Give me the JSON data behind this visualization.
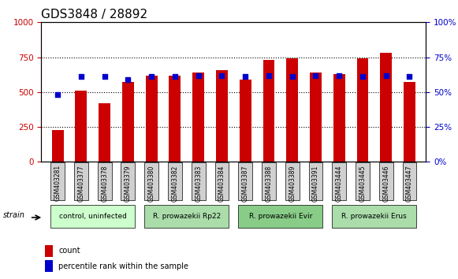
{
  "title": "GDS3848 / 28892",
  "samples": [
    "GSM403281",
    "GSM403377",
    "GSM403378",
    "GSM403379",
    "GSM403380",
    "GSM403382",
    "GSM403383",
    "GSM403384",
    "GSM403387",
    "GSM403388",
    "GSM403389",
    "GSM403391",
    "GSM403444",
    "GSM403445",
    "GSM403446",
    "GSM403447"
  ],
  "counts": [
    230,
    510,
    420,
    575,
    620,
    620,
    640,
    655,
    590,
    730,
    740,
    640,
    630,
    740,
    780,
    570
  ],
  "percentiles": [
    48,
    61,
    61,
    59,
    61,
    61,
    62,
    62,
    61,
    62,
    61,
    62,
    62,
    61,
    62,
    61
  ],
  "bar_color": "#cc0000",
  "dot_color": "#0000cc",
  "left_axis_color": "#cc0000",
  "right_axis_color": "#0000cc",
  "ylim_left": [
    0,
    1000
  ],
  "ylim_right": [
    0,
    100
  ],
  "yticks_left": [
    0,
    250,
    500,
    750,
    1000
  ],
  "yticks_right": [
    0,
    25,
    50,
    75,
    100
  ],
  "groups": [
    {
      "label": "control, uninfected",
      "start": 0,
      "end": 3,
      "color": "#ccffcc"
    },
    {
      "label": "R. prowazekii Rp22",
      "start": 4,
      "end": 7,
      "color": "#99ff99"
    },
    {
      "label": "R. prowazekii Evir",
      "start": 8,
      "end": 11,
      "color": "#66ff66"
    },
    {
      "label": "R. prowazekii Erus",
      "start": 12,
      "end": 15,
      "color": "#99ff99"
    }
  ],
  "legend_count_label": "count",
  "legend_percentile_label": "percentile rank within the sample",
  "strain_label": "strain",
  "bar_width": 0.5,
  "plot_bg": "#ffffff",
  "tick_label_bg": "#d0d0d0",
  "group_colors": [
    "#ccffcc",
    "#99ee99",
    "#66dd66",
    "#99ee99"
  ],
  "title_fontsize": 11,
  "axis_fontsize": 9,
  "tick_fontsize": 7.5
}
